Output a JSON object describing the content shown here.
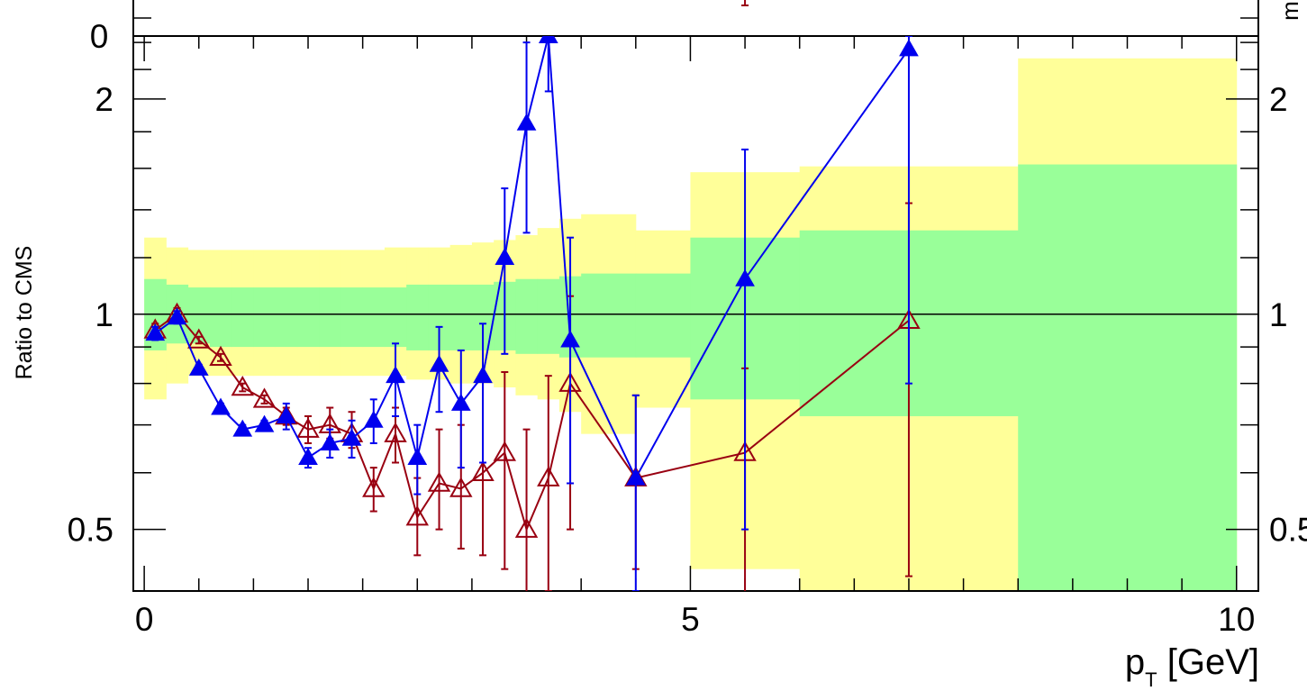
{
  "chart_data": {
    "type": "scatter",
    "xlabel": "p_T [GeV]",
    "xlabel_main": "p",
    "xlabel_sub": "T",
    "xlabel_unit": " [GeV]",
    "ylabel": "Ratio to CMS",
    "xlim": [
      -0.1,
      10.2
    ],
    "ylim": [
      0.41,
      2.45
    ],
    "y_scale": "log",
    "x_ticks": [
      0,
      5,
      10
    ],
    "x_tick_labels": [
      "0",
      "5",
      "10"
    ],
    "y_ticks": [
      0.5,
      1,
      2
    ],
    "y_tick_labels": [
      "0.5",
      "1",
      "2"
    ],
    "right_y_tick_labels": [
      "0.5",
      "1",
      "2"
    ],
    "top_tick_label": "0",
    "top_edge_label": "m",
    "reference_line": 1,
    "colors": {
      "series_a": "#0000ee",
      "series_b": "#990011",
      "band_inner": "#99ff99",
      "band_outer": "#ffff99"
    },
    "bands": {
      "x_edges": [
        0.0,
        0.2,
        0.4,
        0.6,
        0.8,
        1.0,
        1.2,
        1.4,
        1.6,
        1.8,
        2.0,
        2.2,
        2.4,
        2.6,
        2.8,
        3.0,
        3.2,
        3.4,
        3.6,
        3.8,
        4.0,
        4.5,
        5.0,
        6.0,
        8.0,
        10.0
      ],
      "inner_low": [
        0.89,
        0.91,
        0.91,
        0.9,
        0.9,
        0.9,
        0.9,
        0.9,
        0.9,
        0.9,
        0.9,
        0.9,
        0.89,
        0.89,
        0.89,
        0.89,
        0.89,
        0.88,
        0.88,
        0.87,
        0.87,
        0.87,
        0.76,
        0.72,
        0.4,
        0.4
      ],
      "inner_high": [
        1.12,
        1.1,
        1.09,
        1.09,
        1.09,
        1.09,
        1.09,
        1.09,
        1.09,
        1.09,
        1.09,
        1.09,
        1.1,
        1.1,
        1.1,
        1.1,
        1.11,
        1.12,
        1.12,
        1.13,
        1.14,
        1.14,
        1.28,
        1.31,
        1.62,
        1.62
      ],
      "outer_low": [
        0.76,
        0.8,
        0.82,
        0.82,
        0.82,
        0.82,
        0.82,
        0.82,
        0.82,
        0.82,
        0.82,
        0.82,
        0.81,
        0.81,
        0.8,
        0.8,
        0.79,
        0.77,
        0.76,
        0.73,
        0.68,
        0.74,
        0.44,
        0.41,
        0.4,
        0.4
      ],
      "outer_high": [
        1.28,
        1.24,
        1.23,
        1.23,
        1.23,
        1.23,
        1.23,
        1.23,
        1.23,
        1.23,
        1.23,
        1.24,
        1.24,
        1.24,
        1.25,
        1.26,
        1.27,
        1.29,
        1.32,
        1.36,
        1.38,
        1.31,
        1.58,
        1.61,
        2.28,
        2.28
      ]
    },
    "series": [
      {
        "marker": "filled-triangle",
        "color": "#0000ee",
        "x": [
          0.1,
          0.3,
          0.5,
          0.7,
          0.9,
          1.1,
          1.3,
          1.5,
          1.7,
          1.9,
          2.1,
          2.3,
          2.5,
          2.7,
          2.9,
          3.1,
          3.3,
          3.5,
          3.7,
          3.9,
          4.5,
          5.5,
          7.0
        ],
        "y": [
          0.94,
          0.99,
          0.84,
          0.74,
          0.69,
          0.7,
          0.72,
          0.63,
          0.66,
          0.67,
          0.71,
          0.82,
          0.63,
          0.85,
          0.75,
          0.82,
          1.2,
          1.85,
          2.45,
          0.92,
          0.59,
          1.12,
          2.35
        ],
        "err_low": [
          0.02,
          0.02,
          0.01,
          0.01,
          0.01,
          0.01,
          0.03,
          0.02,
          0.03,
          0.04,
          0.05,
          0.1,
          0.07,
          0.12,
          0.14,
          0.2,
          0.32,
          0.55,
          0.4,
          0.34,
          0.18,
          0.62,
          1.55
        ],
        "err_high": [
          0.02,
          0.02,
          0.01,
          0.01,
          0.01,
          0.01,
          0.03,
          0.02,
          0.03,
          0.04,
          0.05,
          0.09,
          0.07,
          0.11,
          0.14,
          0.15,
          0.3,
          0.55,
          0.3,
          0.36,
          0.18,
          0.58,
          0.1
        ]
      },
      {
        "marker": "open-triangle",
        "color": "#990011",
        "x": [
          0.1,
          0.3,
          0.5,
          0.7,
          0.9,
          1.1,
          1.3,
          1.5,
          1.7,
          1.9,
          2.1,
          2.3,
          2.5,
          2.7,
          2.9,
          3.1,
          3.3,
          3.5,
          3.7,
          3.9,
          4.5,
          5.5,
          7.0
        ],
        "y": [
          0.95,
          1.0,
          0.92,
          0.87,
          0.79,
          0.76,
          0.72,
          0.69,
          0.7,
          0.68,
          0.57,
          0.68,
          0.52,
          0.58,
          0.57,
          0.6,
          0.64,
          0.5,
          0.59,
          0.8,
          0.59,
          0.64,
          0.98
        ],
        "err_low": [
          0.02,
          0.02,
          0.01,
          0.01,
          0.01,
          0.01,
          0.02,
          0.03,
          0.03,
          0.03,
          0.04,
          0.06,
          0.06,
          0.08,
          0.1,
          0.14,
          0.2,
          0.15,
          0.18,
          0.3,
          0.15,
          0.24,
          0.55
        ],
        "err_high": [
          0.02,
          0.02,
          0.01,
          0.01,
          0.01,
          0.01,
          0.02,
          0.03,
          0.04,
          0.05,
          0.04,
          0.06,
          0.07,
          0.11,
          0.13,
          0.22,
          0.19,
          0.19,
          0.23,
          0.26,
          0.18,
          0.2,
          0.45
        ]
      }
    ]
  }
}
